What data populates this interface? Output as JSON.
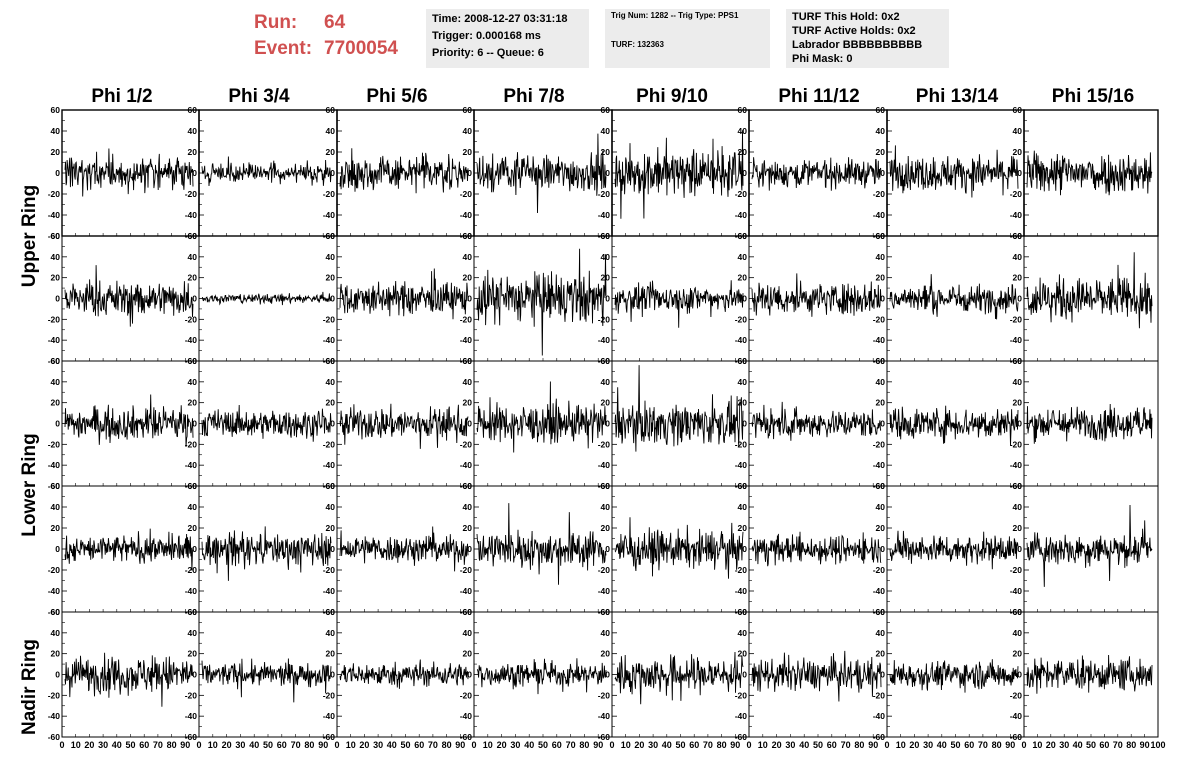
{
  "run": {
    "run_label": "Run:",
    "run_value": "64",
    "event_label": "Event:",
    "event_value": "7700054"
  },
  "info_box_1": {
    "line1": "Time: 2008-12-27 03:31:18",
    "line2": "Trigger: 0.000168 ms",
    "line3": "Priority: 6 -- Queue: 6"
  },
  "info_box_2": {
    "line1": "Trig Num: 1282 -- Trig Type: PPS1",
    "line2": "TURF: 132363"
  },
  "info_box_3": {
    "line1": "TURF This Hold: 0x2",
    "line2": "TURF Active Holds: 0x2",
    "line3": "Labrador BBBBBBBBBB",
    "line4": "Phi Mask: 0"
  },
  "column_headers": [
    "Phi 1/2",
    "Phi 3/4",
    "Phi 5/6",
    "Phi 7/8",
    "Phi 9/10",
    "Phi 11/12",
    "Phi 13/14",
    "Phi 15/16"
  ],
  "ring_labels": {
    "upper": "Upper Ring",
    "lower": "Lower Ring",
    "nadir": "Nadir Ring"
  },
  "chart_data": {
    "type": "line",
    "description_rows": 5,
    "columns": 8,
    "ylim": [
      -60,
      60
    ],
    "y_ticks": [
      -60,
      -40,
      -20,
      0,
      20,
      40,
      60
    ],
    "xlim": [
      0,
      100
    ],
    "x_tick_labels": [
      "0",
      "10",
      "20",
      "30",
      "40",
      "50",
      "60",
      "70",
      "80",
      "90",
      "100"
    ],
    "amplitudes": [
      [
        15,
        8,
        14,
        16,
        20,
        12,
        15,
        18
      ],
      [
        15,
        4,
        14,
        22,
        12,
        14,
        12,
        18
      ],
      [
        14,
        12,
        14,
        16,
        18,
        12,
        14,
        14
      ],
      [
        12,
        14,
        12,
        16,
        16,
        12,
        12,
        14
      ],
      [
        16,
        10,
        10,
        10,
        16,
        14,
        12,
        14
      ]
    ],
    "samples_per_trace": 240,
    "seed": 7700054
  }
}
